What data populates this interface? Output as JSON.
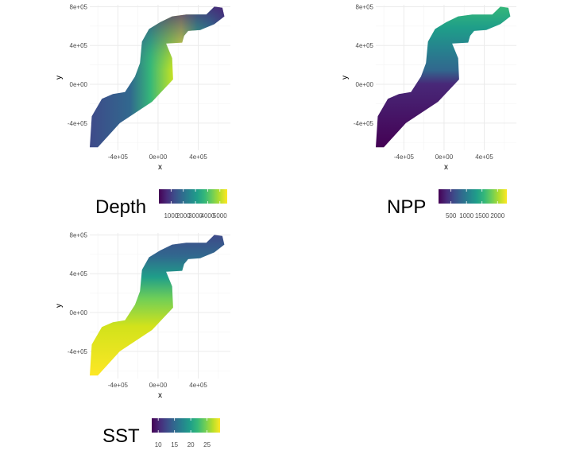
{
  "chart_data": [
    {
      "type": "heatmap",
      "variable": "Depth",
      "xlabel": "x",
      "ylabel": "y",
      "xlim": [
        -680000,
        720000
      ],
      "ylim": [
        -680000,
        820000
      ],
      "x_ticks": [
        {
          "value": -400000,
          "label": "-4e+05"
        },
        {
          "value": 0,
          "label": "0e+00"
        },
        {
          "value": 400000,
          "label": "4e+05"
        }
      ],
      "y_ticks": [
        {
          "value": 800000,
          "label": "8e+05"
        },
        {
          "value": 400000,
          "label": "4e+05"
        },
        {
          "value": 0,
          "label": "0e+00"
        },
        {
          "value": -400000,
          "label": "-4e+05"
        }
      ],
      "grid": true,
      "colormap": "viridis",
      "legend": {
        "title": "Depth",
        "position": "bottom",
        "range": [
          0,
          5600
        ],
        "ticks": [
          1000,
          2000,
          3000,
          4000,
          5000
        ],
        "tick_labels": [
          "1000",
          "2000",
          "3000",
          "4000",
          "5000"
        ]
      }
    },
    {
      "type": "heatmap",
      "variable": "NPP",
      "xlabel": "x",
      "ylabel": "y",
      "xlim": [
        -680000,
        720000
      ],
      "ylim": [
        -680000,
        820000
      ],
      "x_ticks": [
        {
          "value": -400000,
          "label": "-4e+05"
        },
        {
          "value": 0,
          "label": "0e+00"
        },
        {
          "value": 400000,
          "label": "4e+05"
        }
      ],
      "y_ticks": [
        {
          "value": 800000,
          "label": "8e+05"
        },
        {
          "value": 400000,
          "label": "4e+05"
        },
        {
          "value": 0,
          "label": "0e+00"
        },
        {
          "value": -400000,
          "label": "-4e+05"
        }
      ],
      "grid": true,
      "colormap": "viridis",
      "legend": {
        "title": "NPP",
        "position": "bottom",
        "range": [
          100,
          2300
        ],
        "ticks": [
          500,
          1000,
          1500,
          2000
        ],
        "tick_labels": [
          "500",
          "1000",
          "1500",
          "2000"
        ]
      }
    },
    {
      "type": "heatmap",
      "variable": "SST",
      "xlabel": "x",
      "ylabel": "y",
      "xlim": [
        -680000,
        720000
      ],
      "ylim": [
        -680000,
        820000
      ],
      "x_ticks": [
        {
          "value": -400000,
          "label": "-4e+05"
        },
        {
          "value": 0,
          "label": "0e+00"
        },
        {
          "value": 400000,
          "label": "4e+05"
        }
      ],
      "y_ticks": [
        {
          "value": 800000,
          "label": "8e+05"
        },
        {
          "value": 400000,
          "label": "4e+05"
        },
        {
          "value": 0,
          "label": "0e+00"
        },
        {
          "value": -400000,
          "label": "-4e+05"
        }
      ],
      "grid": true,
      "colormap": "viridis",
      "legend": {
        "title": "SST",
        "position": "bottom",
        "range": [
          8,
          29
        ],
        "ticks": [
          10,
          15,
          20,
          25
        ],
        "tick_labels": [
          "10",
          "15",
          "20",
          "25"
        ]
      }
    }
  ],
  "colors": {
    "viridis": [
      "#440154",
      "#482878",
      "#3e4a89",
      "#31688e",
      "#26828e",
      "#1f9e89",
      "#35b779",
      "#6ece58",
      "#b5de2b",
      "#fde725"
    ],
    "gridline": "#ebebeb",
    "text": "#4d4d4d"
  }
}
